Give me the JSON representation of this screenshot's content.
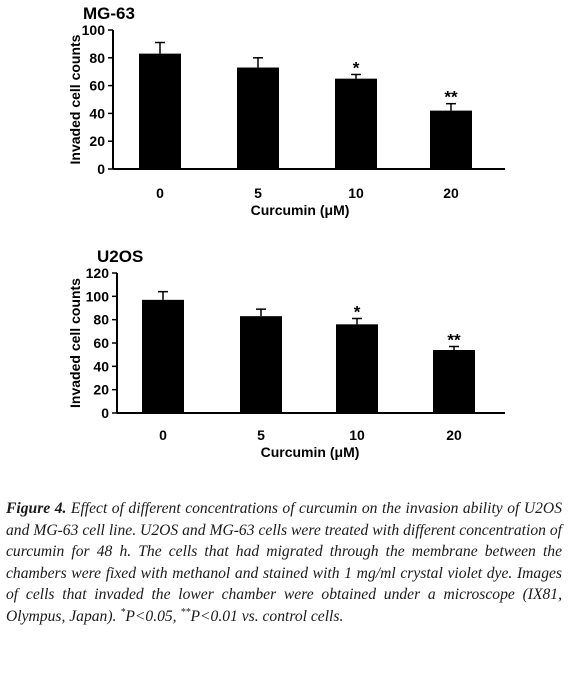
{
  "chart_data": [
    {
      "type": "bar",
      "title": "MG-63",
      "xlabel": "Curcumin (μM)",
      "ylabel": "Invaded cell counts",
      "categories": [
        "0",
        "5",
        "10",
        "20"
      ],
      "values": [
        83,
        73,
        65,
        42
      ],
      "errors": [
        8,
        7,
        3,
        5
      ],
      "significance": [
        "",
        "",
        "*",
        "**"
      ],
      "ylim": [
        0,
        100
      ],
      "yticks": [
        0,
        20,
        40,
        60,
        80,
        100
      ],
      "grid": false,
      "bar_color": "#000000"
    },
    {
      "type": "bar",
      "title": "U2OS",
      "xlabel": "Curcumin (μM)",
      "ylabel": "Invaded cell counts",
      "categories": [
        "0",
        "5",
        "10",
        "20"
      ],
      "values": [
        97,
        83,
        76,
        54
      ],
      "errors": [
        7,
        6,
        5,
        3
      ],
      "significance": [
        "",
        "",
        "*",
        "**"
      ],
      "ylim": [
        0,
        120
      ],
      "yticks": [
        0,
        20,
        40,
        60,
        80,
        100,
        120
      ],
      "grid": false,
      "bar_color": "#000000"
    }
  ],
  "caption": {
    "label": "Figure 4.",
    "text": " Effect of different concentrations of curcumin on the invasion ability of U2OS and MG-63 cell line. U2OS and MG-63 cells were treated with different concentration of curcumin for 48 h. The cells that had migrated through the membrane between the chambers were fixed with methanol and stained with 1 mg/ml crystal violet dye. Images of cells that invaded the lower chamber were obtained under a microscope (IX81, Olympus, Japan). ",
    "sig1_mark": "*",
    "sig1_text": "P<0.05, ",
    "sig2_mark": "**",
    "sig2_text": "P<0.01 vs. control cells."
  }
}
